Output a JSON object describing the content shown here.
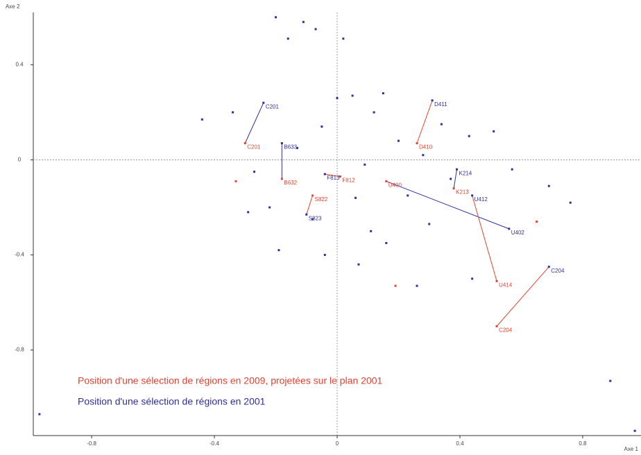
{
  "chart_data": {
    "type": "scatter",
    "xlabel": "Axe 1",
    "ylabel": "Axe 2",
    "xlim": [
      -0.99,
      0.99
    ],
    "ylim": [
      -1.16,
      0.62
    ],
    "xticks": [
      -0.8,
      -0.4,
      0,
      0.4,
      0.8
    ],
    "yticks": [
      -0.8,
      -0.4,
      0,
      0.4
    ],
    "grid": false,
    "series": [
      {
        "name": "Position d'une sélection de régions en 2001",
        "color": "#2e2e9e",
        "labels": [
          "C204",
          "U402",
          "U412",
          "C201",
          "D411",
          "B633",
          "F813",
          "K214",
          "S823",
          null,
          null,
          null,
          null,
          null,
          null,
          null,
          null,
          null,
          null,
          null,
          null,
          null,
          null,
          null,
          null,
          null,
          null,
          null,
          null,
          null,
          null,
          null,
          null,
          null,
          null,
          null,
          null,
          null,
          null,
          null,
          null,
          null,
          null,
          null,
          null,
          null,
          null,
          null,
          null
        ],
        "x": [
          0.69,
          0.56,
          0.44,
          -0.24,
          0.31,
          -0.18,
          -0.04,
          0.39,
          -0.1,
          -0.97,
          0.89,
          0.97,
          -0.2,
          -0.11,
          0.02,
          -0.16,
          -0.07,
          0.76,
          0.69,
          -0.44,
          -0.04,
          0.07,
          0.26,
          0.44,
          0.57,
          0.51,
          0.16,
          -0.19,
          -0.29,
          0.05,
          0.12,
          0.2,
          0.28,
          -0.05,
          0.0,
          0.09,
          -0.13,
          0.34,
          0.37,
          0.23,
          -0.27,
          -0.34,
          0.15,
          0.06,
          0.3,
          -0.22,
          0.43,
          0.11,
          -0.08
        ],
        "values": [
          -0.45,
          -0.29,
          -0.15,
          0.24,
          0.25,
          0.07,
          -0.06,
          -0.04,
          -0.23,
          -1.07,
          -0.93,
          -1.14,
          0.6,
          0.58,
          0.51,
          0.51,
          0.55,
          -0.18,
          -0.11,
          0.17,
          -0.4,
          -0.44,
          -0.53,
          -0.5,
          -0.04,
          0.12,
          -0.35,
          -0.38,
          -0.22,
          0.27,
          0.2,
          0.08,
          0.02,
          0.14,
          0.26,
          -0.02,
          0.05,
          0.15,
          -0.08,
          -0.15,
          -0.05,
          0.2,
          0.28,
          -0.16,
          -0.27,
          -0.2,
          0.1,
          -0.3,
          -0.25
        ]
      },
      {
        "name": "Position d'une sélection de régions en 2009, projetées sur le plan 2001",
        "color": "#e8402f",
        "labels": [
          "C204",
          "U400",
          "U414",
          "C201",
          "D410",
          "B632",
          "F812",
          "K213",
          "S822",
          null,
          null,
          null
        ],
        "x": [
          0.52,
          0.16,
          0.52,
          -0.3,
          0.26,
          -0.18,
          0.01,
          0.38,
          -0.08,
          0.65,
          -0.33,
          0.19
        ],
        "values": [
          -0.7,
          -0.09,
          -0.51,
          0.07,
          0.07,
          -0.08,
          -0.07,
          -0.12,
          -0.15,
          -0.26,
          -0.09,
          -0.53
        ]
      }
    ]
  }
}
